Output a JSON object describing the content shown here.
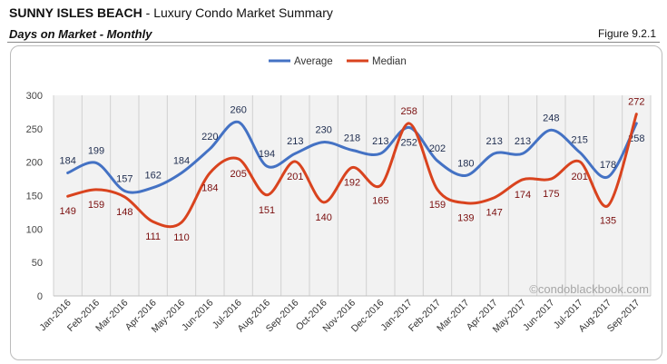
{
  "header": {
    "title_bold": "SUNNY ISLES BEACH",
    "title_rest": " - Luxury Condo Market Summary",
    "subtitle": "Days on Market - Monthly",
    "figure": "Figure 9.2.1"
  },
  "watermark": "©condoblackbook.com",
  "chart_data": {
    "type": "line",
    "categories": [
      "Jan-2016",
      "Feb-2016",
      "Mar-2016",
      "Apr-2016",
      "May-2016",
      "Jun-2016",
      "Jul-2016",
      "Aug-2016",
      "Sep-2016",
      "Oct-2016",
      "Nov-2016",
      "Dec-2016",
      "Jan-2017",
      "Feb-2017",
      "Mar-2017",
      "Apr-2017",
      "May-2017",
      "Jun-2017",
      "Jul-2017",
      "Aug-2017",
      "Sep-2017"
    ],
    "series": [
      {
        "name": "Average",
        "color": "#4472C4",
        "label_color": "#1F2D4F",
        "values": [
          184,
          199,
          157,
          162,
          184,
          220,
          260,
          194,
          213,
          230,
          218,
          213,
          252,
          202,
          180,
          213,
          213,
          248,
          215,
          178,
          258
        ]
      },
      {
        "name": "Median",
        "color": "#D9431E",
        "label_color": "#7A0E0E",
        "values": [
          149,
          159,
          148,
          111,
          110,
          184,
          205,
          151,
          201,
          140,
          192,
          165,
          258,
          159,
          139,
          147,
          174,
          175,
          201,
          135,
          272
        ]
      }
    ],
    "ylim": [
      0,
      300
    ],
    "yticks": [
      0,
      50,
      100,
      150,
      200,
      250,
      300
    ],
    "grid": "vertical",
    "legend": "top",
    "smooth": true,
    "plot_bg": "#F2F2F2"
  }
}
